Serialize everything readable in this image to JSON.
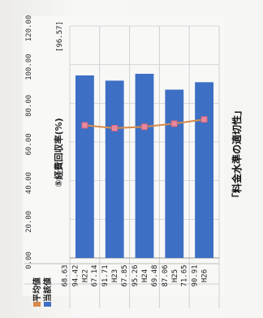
{
  "chart_data": {
    "type": "bar",
    "title": "⑤経費回収率(%)",
    "summary_value": "[96.57]",
    "categories": [
      "H22",
      "H23",
      "H24",
      "H25",
      "H26"
    ],
    "series": [
      {
        "name": "当該値",
        "values": [
          94.42,
          91.71,
          95.26,
          87.06,
          90.91
        ],
        "color": "#3d6fc4"
      },
      {
        "name": "平均値",
        "values": [
          68.63,
          67.14,
          67.85,
          69.48,
          71.65
        ],
        "color": "#d98a4a"
      }
    ],
    "value_labels": [
      [
        "94.42",
        "91.71",
        "95.26",
        "87.06",
        "90.91"
      ],
      [
        "68.63",
        "67.14",
        "67.85",
        "69.48",
        "71.65"
      ]
    ],
    "ylim": [
      0,
      120
    ],
    "yticks": [
      "0.00",
      "20.00",
      "40.00",
      "60.00",
      "80.00",
      "100.00",
      "120.00"
    ],
    "grid": true,
    "orientation": "rotated-90-counterclockwise"
  },
  "caption": "「料金水準の適切性」"
}
